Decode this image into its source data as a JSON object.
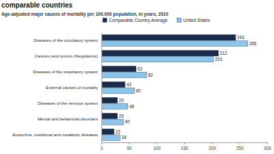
{
  "chart_data": {
    "type": "bar",
    "orientation": "horizontal",
    "title": "comparable countries",
    "subtitle": "Age-adjusted major causes of mortality per 100,000 population, in years, 2010",
    "categories": [
      "Diseases of the circulatory system",
      "Cancers and tumors (Neoplasms)",
      "Diseases of the respiratory system",
      "External causes of mortality",
      "Diseases of the nervous system",
      "Mental and behavioral disorders",
      "Endocrine, nutritional and metabolic diseases"
    ],
    "series": [
      {
        "name": "Comparable Country Average",
        "color": "#1c2b4a",
        "values": [
          243,
          212,
          63,
          43,
          29,
          29,
          23
        ]
      },
      {
        "name": "United States",
        "color": "#8cc4ea",
        "values": [
          265,
          203,
          82,
          60,
          48,
          40,
          34
        ]
      }
    ],
    "xlim": [
      0,
      300
    ],
    "xticks": [
      0,
      50,
      100,
      150,
      200,
      250,
      300
    ],
    "data_labels": true,
    "legend": "top",
    "grid": false
  }
}
